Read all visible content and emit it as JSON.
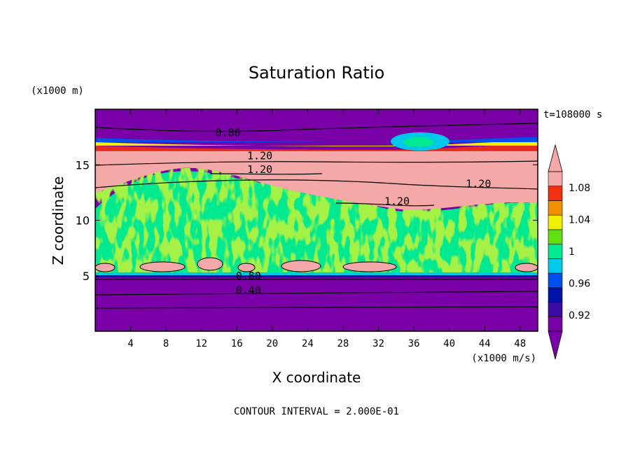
{
  "chart_data": {
    "type": "heatmap",
    "title": "Saturation Ratio",
    "xlabel": "X coordinate",
    "ylabel": "Z coordinate",
    "x_unit_label": "(x1000 m/s)",
    "y_unit_label": "(x1000 m)",
    "time_label": "t=108000 s",
    "footer": "CONTOUR INTERVAL = 2.000E-01",
    "xlim": [
      0,
      50
    ],
    "ylim": [
      0,
      20
    ],
    "x_ticks": [
      4,
      8,
      12,
      16,
      20,
      24,
      28,
      32,
      36,
      40,
      44,
      48
    ],
    "y_ticks": [
      5,
      10,
      15
    ],
    "colorbar": {
      "labels": [
        "1.08",
        "1.04",
        "1",
        "0.96",
        "0.92"
      ],
      "levels": [
        0.9,
        0.92,
        0.94,
        0.96,
        0.98,
        1.0,
        1.02,
        1.04,
        1.06,
        1.08,
        1.1
      ],
      "colors": [
        "#7a00a8",
        "#3b0aa0",
        "#0012a8",
        "#0050f0",
        "#00c8e8",
        "#00e890",
        "#60e010",
        "#f0f000",
        "#f09000",
        "#f03010",
        "#f5a8a8"
      ],
      "extend": "both"
    },
    "contour_labels": [
      {
        "text": "0.80",
        "x": 15.0,
        "y": 17.7
      },
      {
        "text": "1.20",
        "x": 18.6,
        "y": 15.6
      },
      {
        "text": "1.20",
        "x": 18.6,
        "y": 14.4
      },
      {
        "text": "1.20",
        "x": 43.3,
        "y": 13.1
      },
      {
        "text": "1.20",
        "x": 34.1,
        "y": 11.5
      },
      {
        "text": "0.80",
        "x": 17.3,
        "y": 4.8
      },
      {
        "text": "0.40",
        "x": 17.3,
        "y": 3.5
      }
    ]
  }
}
